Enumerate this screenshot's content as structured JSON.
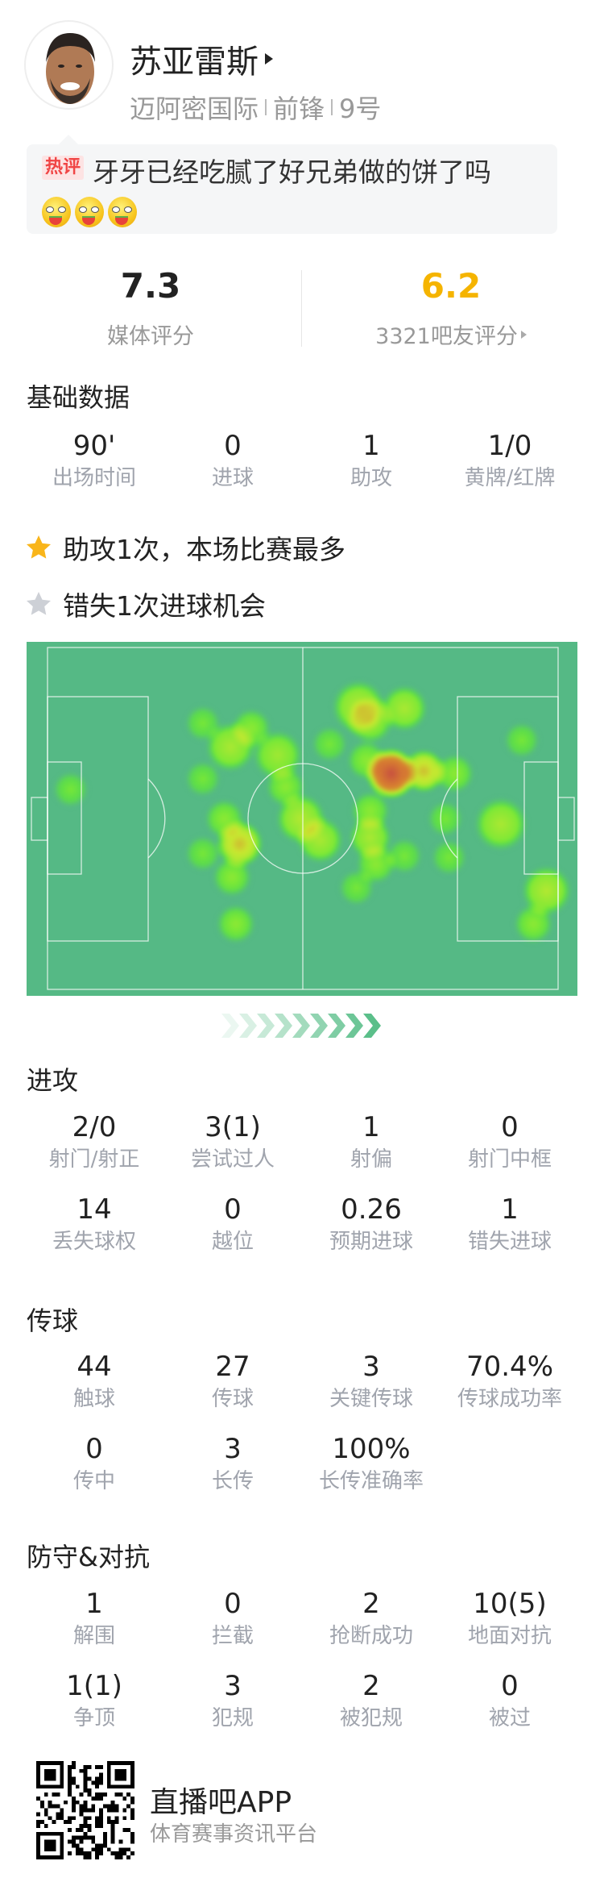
{
  "player": {
    "name": "苏亚雷斯",
    "team": "迈阿密国际",
    "position": "前锋",
    "number": "9号"
  },
  "hot_comment": {
    "tag": "热评",
    "text": "牙牙已经吃腻了好兄弟做的饼了吗",
    "emojis": [
      "eating-watermelon-emoji",
      "eating-watermelon-emoji",
      "eating-watermelon-emoji"
    ]
  },
  "ratings": {
    "media": {
      "value": "7.3",
      "label": "媒体评分"
    },
    "fans": {
      "value": "6.2",
      "label": "3321吧友评分",
      "color": "#f5b400"
    }
  },
  "basic": {
    "title": "基础数据",
    "stats": [
      {
        "value": "90'",
        "label": "出场时间"
      },
      {
        "value": "0",
        "label": "进球"
      },
      {
        "value": "1",
        "label": "助攻"
      },
      {
        "value": "1/0",
        "label": "黄牌/红牌"
      }
    ]
  },
  "highlights": [
    {
      "icon": "star-gold-icon",
      "text": "助攻1次，本场比赛最多",
      "color": "#f9b51a"
    },
    {
      "icon": "star-gray-icon",
      "text": "错失1次进球机会",
      "color": "#cdd0d6"
    }
  ],
  "heatmap": {
    "pitch_color": "#55b985",
    "attack_direction": "right"
  },
  "attack": {
    "title": "进攻",
    "stats": [
      {
        "value": "2/0",
        "label": "射门/射正"
      },
      {
        "value": "3(1)",
        "label": "尝试过人"
      },
      {
        "value": "1",
        "label": "射偏"
      },
      {
        "value": "0",
        "label": "射门中框"
      },
      {
        "value": "14",
        "label": "丢失球权"
      },
      {
        "value": "0",
        "label": "越位"
      },
      {
        "value": "0.26",
        "label": "预期进球"
      },
      {
        "value": "1",
        "label": "错失进球"
      }
    ]
  },
  "passing": {
    "title": "传球",
    "stats": [
      {
        "value": "44",
        "label": "触球"
      },
      {
        "value": "27",
        "label": "传球"
      },
      {
        "value": "3",
        "label": "关键传球"
      },
      {
        "value": "70.4%",
        "label": "传球成功率"
      },
      {
        "value": "0",
        "label": "传中"
      },
      {
        "value": "3",
        "label": "长传"
      },
      {
        "value": "100%",
        "label": "长传准确率"
      }
    ]
  },
  "defense": {
    "title": "防守&对抗",
    "stats": [
      {
        "value": "1",
        "label": "解围"
      },
      {
        "value": "0",
        "label": "拦截"
      },
      {
        "value": "2",
        "label": "抢断成功"
      },
      {
        "value": "10(5)",
        "label": "地面对抗"
      },
      {
        "value": "1(1)",
        "label": "争顶"
      },
      {
        "value": "3",
        "label": "犯规"
      },
      {
        "value": "2",
        "label": "被犯规"
      },
      {
        "value": "0",
        "label": "被过"
      }
    ]
  },
  "footer": {
    "app_name": "直播吧APP",
    "tagline": "体育赛事资讯平台"
  }
}
